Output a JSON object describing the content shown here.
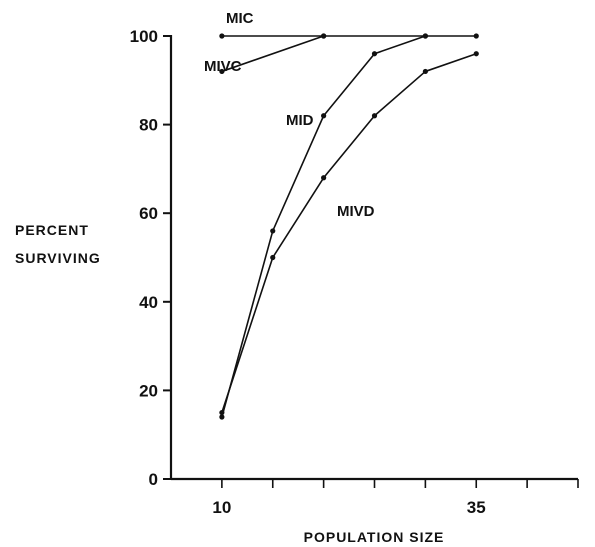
{
  "chart_data": {
    "type": "line",
    "title": "",
    "xlabel": "POPULATION SIZE",
    "ylabel": [
      "PERCENT",
      "SURVIVING"
    ],
    "xlim": [
      5,
      45
    ],
    "ylim": [
      0,
      100
    ],
    "xticks": [
      10,
      35
    ],
    "yticks": [
      0,
      20,
      40,
      60,
      80,
      100
    ],
    "grid": false,
    "series": [
      {
        "name": "MIC",
        "x": [
          10,
          20,
          30,
          35
        ],
        "y": [
          100,
          100,
          100,
          100
        ]
      },
      {
        "name": "MIVC",
        "x": [
          10,
          20
        ],
        "y": [
          92,
          100
        ]
      },
      {
        "name": "MID",
        "x": [
          10,
          15,
          20,
          25,
          30
        ],
        "y": [
          14,
          56,
          82,
          96,
          100
        ]
      },
      {
        "name": "MIVD",
        "x": [
          10,
          15,
          20,
          25,
          30,
          35
        ],
        "y": [
          15,
          50,
          68,
          82,
          92,
          96
        ]
      }
    ]
  }
}
